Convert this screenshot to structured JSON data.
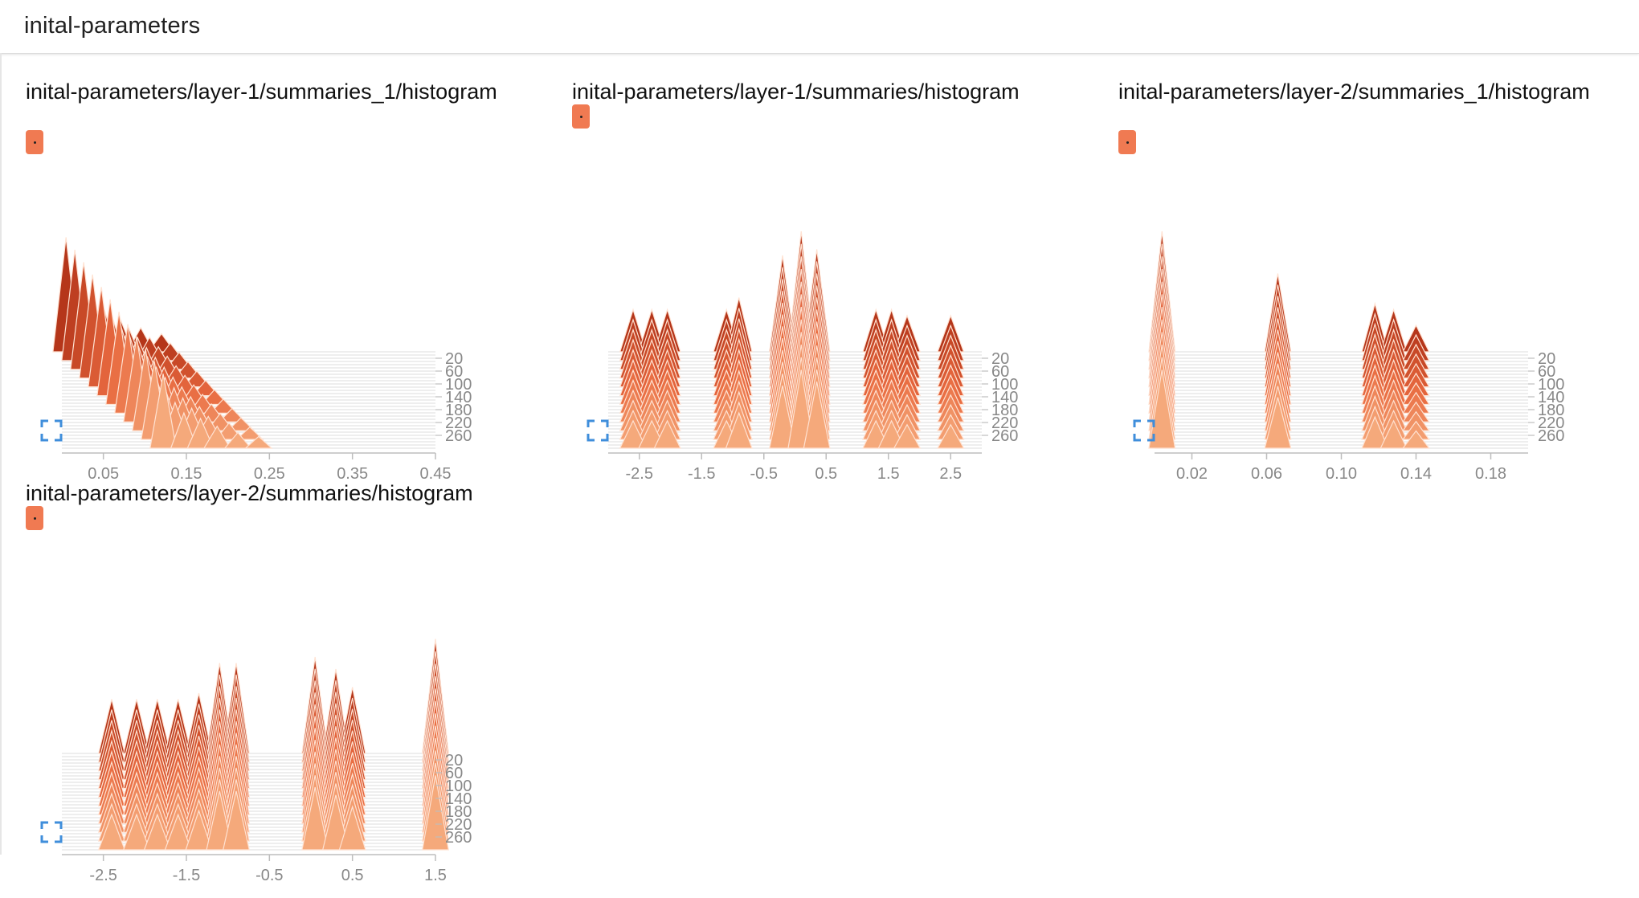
{
  "header": {
    "title": "inital-parameters"
  },
  "cards": [
    {
      "title": "inital-parameters/layer-1/summaries_1/histogram"
    },
    {
      "title": "inital-parameters/layer-1/summaries/histogram"
    },
    {
      "title": "inital-parameters/layer-2/summaries_1/histogram"
    },
    {
      "title": "inital-parameters/layer-2/summaries/histogram"
    }
  ],
  "colors": {
    "dark": "#b5361a",
    "mid": "#e8693f",
    "light": "#f5a97b",
    "edge": "#ffe2d2",
    "badge": "#f07a52",
    "expand": "#3f8edb"
  },
  "chart_data": [
    {
      "type": "histogram",
      "title": "inital-parameters/layer-1/summaries_1/histogram",
      "x_ticks": [
        "0.05",
        "0.15",
        "0.25",
        "0.35",
        "0.45"
      ],
      "x_tick_values": [
        0.05,
        0.15,
        0.25,
        0.35,
        0.45
      ],
      "xlim": [
        0.0,
        0.45
      ],
      "step_ticks": [
        "20",
        "60",
        "100",
        "140",
        "180",
        "220",
        "260"
      ],
      "step_tick_values": [
        20,
        60,
        100,
        140,
        180,
        220,
        260
      ],
      "steps": [
        0,
        300
      ],
      "peaks_first_step": [
        {
          "x": 0.005,
          "h": 0.95
        },
        {
          "x": 0.03,
          "h": 0.45
        },
        {
          "x": 0.05,
          "h": 0.38
        },
        {
          "x": 0.07,
          "h": 0.28
        },
        {
          "x": 0.095,
          "h": 0.2
        },
        {
          "x": 0.12,
          "h": 0.15
        }
      ],
      "drift": 0.26
    },
    {
      "type": "histogram",
      "title": "inital-parameters/layer-1/summaries/histogram",
      "x_ticks": [
        "-2.5",
        "-1.5",
        "-0.5",
        "0.5",
        "1.5",
        "2.5"
      ],
      "x_tick_values": [
        -2.5,
        -1.5,
        -0.5,
        0.5,
        1.5,
        2.5
      ],
      "xlim": [
        -3.0,
        3.0
      ],
      "step_ticks": [
        "20",
        "60",
        "100",
        "140",
        "180",
        "220",
        "260"
      ],
      "step_tick_values": [
        20,
        60,
        100,
        140,
        180,
        220,
        260
      ],
      "steps": [
        0,
        300
      ],
      "peaks_first_step": [
        {
          "x": -2.6,
          "h": 0.35
        },
        {
          "x": -2.3,
          "h": 0.35
        },
        {
          "x": -2.05,
          "h": 0.35
        },
        {
          "x": -1.1,
          "h": 0.35
        },
        {
          "x": -0.9,
          "h": 0.45
        },
        {
          "x": -0.2,
          "h": 0.8
        },
        {
          "x": 0.1,
          "h": 1.0
        },
        {
          "x": 0.35,
          "h": 0.85
        },
        {
          "x": 1.3,
          "h": 0.35
        },
        {
          "x": 1.55,
          "h": 0.35
        },
        {
          "x": 1.8,
          "h": 0.3
        },
        {
          "x": 2.5,
          "h": 0.3
        }
      ],
      "drift": 0.0
    },
    {
      "type": "histogram",
      "title": "inital-parameters/layer-2/summaries_1/histogram",
      "x_ticks": [
        "0.02",
        "0.06",
        "0.10",
        "0.14",
        "0.18"
      ],
      "x_tick_values": [
        0.02,
        0.06,
        0.1,
        0.14,
        0.18
      ],
      "xlim": [
        0.0,
        0.2
      ],
      "step_ticks": [
        "20",
        "60",
        "100",
        "140",
        "180",
        "220",
        "260"
      ],
      "step_tick_values": [
        20,
        60,
        100,
        140,
        180,
        220,
        260
      ],
      "steps": [
        0,
        300
      ],
      "peaks_first_step": [
        {
          "x": 0.004,
          "h": 1.0
        },
        {
          "x": 0.066,
          "h": 0.65
        },
        {
          "x": 0.118,
          "h": 0.4
        },
        {
          "x": 0.128,
          "h": 0.35
        },
        {
          "x": 0.14,
          "h": 0.22
        }
      ],
      "drift": 0.0
    },
    {
      "type": "histogram",
      "title": "inital-parameters/layer-2/summaries/histogram",
      "x_ticks": [
        "-2.5",
        "-1.5",
        "-0.5",
        "0.5",
        "1.5"
      ],
      "x_tick_values": [
        -2.5,
        -1.5,
        -0.5,
        0.5,
        1.5
      ],
      "xlim": [
        -3.0,
        1.5
      ],
      "step_ticks": [
        "20",
        "60",
        "100",
        "140",
        "180",
        "220",
        "260"
      ],
      "step_tick_values": [
        20,
        60,
        100,
        140,
        180,
        220,
        260
      ],
      "steps": [
        0,
        300
      ],
      "peaks_first_step": [
        {
          "x": -2.4,
          "h": 0.45
        },
        {
          "x": -2.1,
          "h": 0.45
        },
        {
          "x": -1.85,
          "h": 0.45
        },
        {
          "x": -1.6,
          "h": 0.45
        },
        {
          "x": -1.35,
          "h": 0.5
        },
        {
          "x": -1.1,
          "h": 0.75
        },
        {
          "x": -0.9,
          "h": 0.75
        },
        {
          "x": 0.05,
          "h": 0.8
        },
        {
          "x": 0.3,
          "h": 0.7
        },
        {
          "x": 0.5,
          "h": 0.55
        },
        {
          "x": 1.5,
          "h": 0.95
        }
      ],
      "drift": 0.0
    }
  ]
}
